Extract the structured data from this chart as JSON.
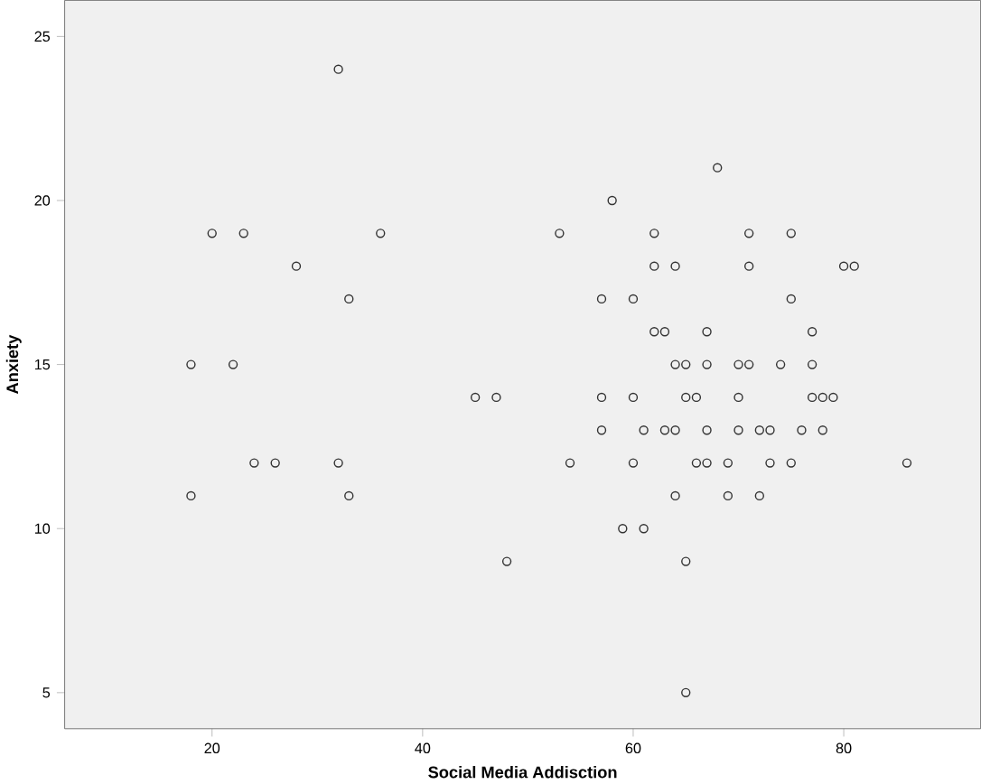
{
  "chart_data": {
    "type": "scatter",
    "xlabel": "Social Media Addisction",
    "ylabel": "Anxiety",
    "xlim": [
      6,
      93
    ],
    "ylim": [
      3.9,
      26.1
    ],
    "xticks": [
      20,
      40,
      60,
      80
    ],
    "yticks": [
      5,
      10,
      15,
      20,
      25
    ],
    "grid": false,
    "marker": "circle",
    "series": [
      {
        "color": "#333333",
        "x": [
          68,
          58,
          53,
          62,
          71,
          75,
          20,
          23,
          36,
          62,
          64,
          71,
          80,
          81,
          28,
          57,
          60,
          75,
          33,
          62,
          63,
          67,
          77,
          64,
          65,
          67,
          70,
          71,
          74,
          77,
          18,
          22,
          47,
          57,
          60,
          65,
          66,
          70,
          77,
          78,
          79,
          45,
          57,
          61,
          63,
          64,
          67,
          70,
          72,
          73,
          76,
          78,
          54,
          60,
          66,
          67,
          69,
          73,
          75,
          86,
          24,
          26,
          32,
          64,
          69,
          72,
          18,
          33,
          59,
          61,
          48,
          65,
          65,
          32
        ],
        "values": [
          21,
          20,
          19,
          19,
          19,
          19,
          19,
          19,
          19,
          18,
          18,
          18,
          18,
          18,
          18,
          17,
          17,
          17,
          17,
          16,
          16,
          16,
          16,
          15,
          15,
          15,
          15,
          15,
          15,
          15,
          15,
          15,
          14,
          14,
          14,
          14,
          14,
          14,
          14,
          14,
          14,
          14,
          13,
          13,
          13,
          13,
          13,
          13,
          13,
          13,
          13,
          13,
          12,
          12,
          12,
          12,
          12,
          12,
          12,
          12,
          12,
          12,
          12,
          11,
          11,
          11,
          11,
          11,
          10,
          10,
          9,
          9,
          5,
          24
        ]
      }
    ]
  }
}
